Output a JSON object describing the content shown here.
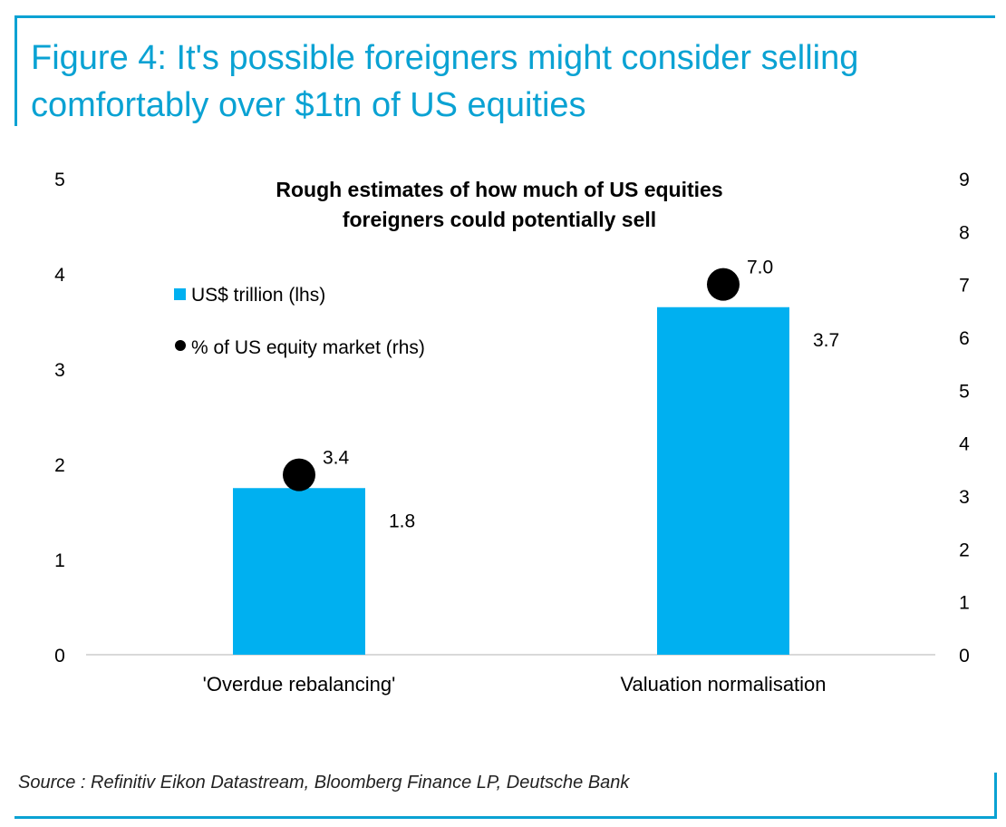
{
  "figure": {
    "title_line1": "Figure 4: It's possible foreigners might consider selling",
    "title_line2": "comfortably over $1tn of US equities"
  },
  "source": "Source : Refinitiv Eikon Datastream, Bloomberg Finance LP, Deutsche Bank",
  "colors": {
    "accent": "#0aa2d3",
    "bar": "#00b0f0",
    "marker": "#000000",
    "axis": "#d9d9d9"
  },
  "chart_data": {
    "type": "bar",
    "title_line1": "Rough estimates of how much of US equities",
    "title_line2": "foreigners could potentially sell",
    "categories": [
      "'Overdue rebalancing'",
      "Valuation normalisation"
    ],
    "series": [
      {
        "name": "US$ trillion (lhs)",
        "type": "bar",
        "axis": "left",
        "values": [
          1.75,
          3.65
        ],
        "labels": [
          "1.8",
          "3.7"
        ]
      },
      {
        "name": "% of US equity market (rhs)",
        "type": "scatter",
        "axis": "right",
        "values": [
          3.4,
          7.0
        ],
        "labels": [
          "3.4",
          "7.0"
        ]
      }
    ],
    "y_left": {
      "min": 0,
      "max": 5,
      "ticks": [
        "0",
        "1",
        "2",
        "3",
        "4",
        "5"
      ]
    },
    "y_right": {
      "min": 0,
      "max": 9,
      "ticks": [
        "0",
        "1",
        "2",
        "3",
        "4",
        "5",
        "6",
        "7",
        "8",
        "9"
      ]
    },
    "grid": false,
    "legend_position": "top-left"
  }
}
